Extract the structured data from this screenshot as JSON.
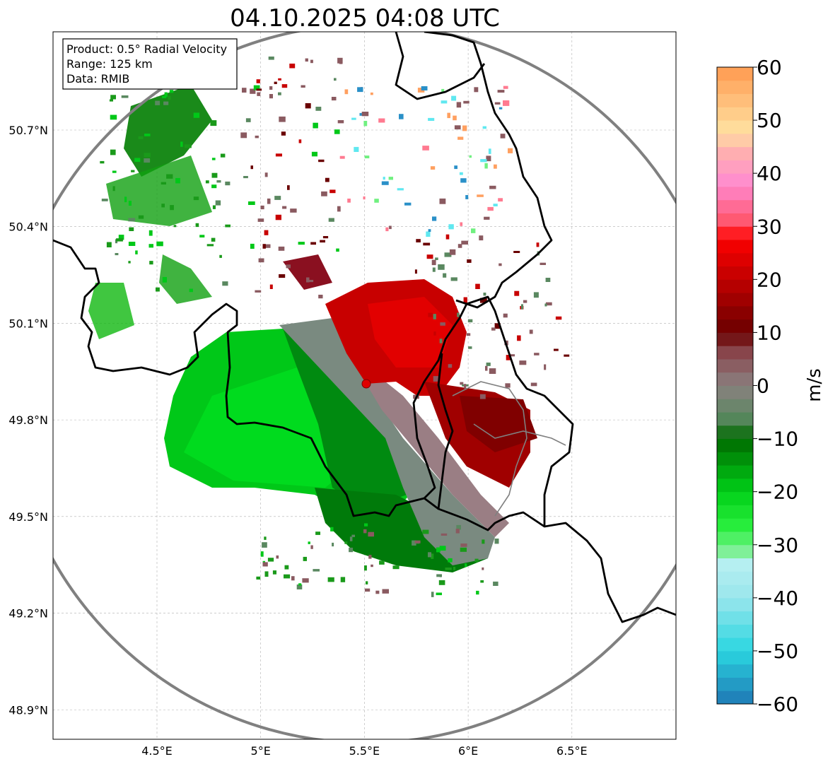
{
  "title": "04.10.2025 04:08 UTC",
  "info_box": {
    "product": "Product: 0.5° Radial Velocity",
    "range": "Range: 125 km",
    "data": "Data: RMIB"
  },
  "axes": {
    "lon_ticks": [
      {
        "value": 4.5,
        "label": "4.5°E"
      },
      {
        "value": 5.0,
        "label": "5°E"
      },
      {
        "value": 5.5,
        "label": "5.5°E"
      },
      {
        "value": 6.0,
        "label": "6°E"
      },
      {
        "value": 6.5,
        "label": "6.5°E"
      }
    ],
    "lat_ticks": [
      {
        "value": 50.7,
        "label": "50.7°N"
      },
      {
        "value": 50.4,
        "label": "50.4°N"
      },
      {
        "value": 50.1,
        "label": "50.1°N"
      },
      {
        "value": 49.8,
        "label": "49.8°N"
      },
      {
        "value": 49.5,
        "label": "49.5°N"
      },
      {
        "value": 49.2,
        "label": "49.2°N"
      },
      {
        "value": 48.9,
        "label": "48.9°N"
      }
    ],
    "lon_range": [
      4.0,
      7.0
    ],
    "lat_range": [
      48.8,
      51.0
    ],
    "grid": true
  },
  "radar_site": {
    "lon": 5.5,
    "lat": 49.915
  },
  "colorbar": {
    "label": "m/s",
    "min": -60,
    "max": 60,
    "ticks": [
      "60",
      "50",
      "40",
      "30",
      "20",
      "10",
      "0",
      "−10",
      "−20",
      "−30",
      "−40",
      "−50",
      "−60"
    ],
    "stops": [
      {
        "v": -60,
        "c": "#1f77b4"
      },
      {
        "v": -50,
        "c": "#2ad6e0"
      },
      {
        "v": -40,
        "c": "#9ae6ec"
      },
      {
        "v": -33,
        "c": "#b8f0f2"
      },
      {
        "v": -32,
        "c": "#8ef0a8"
      },
      {
        "v": -27,
        "c": "#2cf040"
      },
      {
        "v": -20,
        "c": "#00d018"
      },
      {
        "v": -10,
        "c": "#006a00"
      },
      {
        "v": -6,
        "c": "#5a8860"
      },
      {
        "v": 0,
        "c": "#8a8080"
      },
      {
        "v": 6,
        "c": "#8a4a50"
      },
      {
        "v": 10,
        "c": "#6a0000"
      },
      {
        "v": 20,
        "c": "#c00000"
      },
      {
        "v": 28,
        "c": "#ff0000"
      },
      {
        "v": 30,
        "c": "#ff5060"
      },
      {
        "v": 38,
        "c": "#ff8ad0"
      },
      {
        "v": 44,
        "c": "#ffb0b0"
      },
      {
        "v": 48,
        "c": "#ffe0a0"
      },
      {
        "v": 60,
        "c": "#ff9a50"
      }
    ]
  },
  "colors": {
    "range_ring": "#808080",
    "border": "#000000",
    "grid": "#b0b0b0"
  }
}
